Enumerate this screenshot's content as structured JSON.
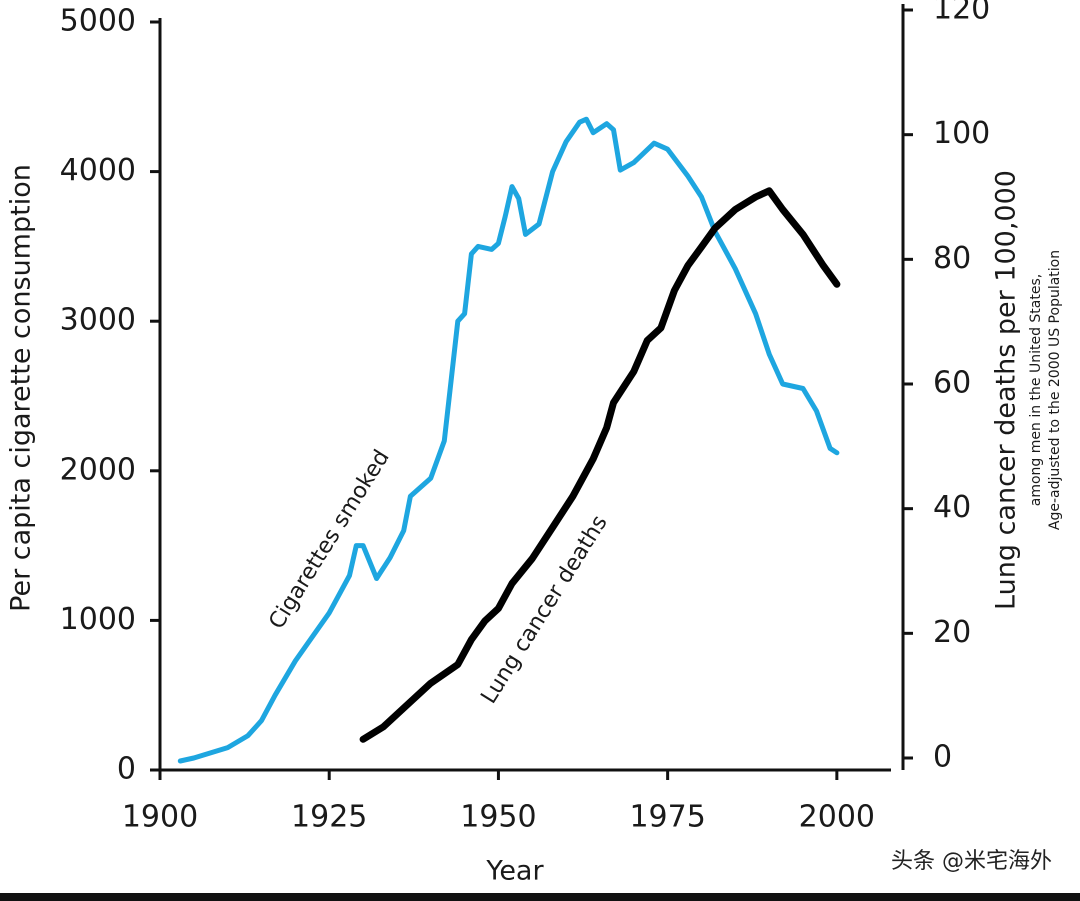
{
  "chart_data": {
    "type": "line",
    "xlabel": "Year",
    "ylabel": "Per capita cigarette consumption",
    "y2label": "Lung cancer deaths per 100,000",
    "y2note": [
      "among men in the United States,",
      "Age-adjusted to the 2000 US Population"
    ],
    "watermark": "头条 @米宅海外",
    "xlim": [
      1900,
      2008
    ],
    "xticks": [
      1900,
      1925,
      1950,
      1975,
      2000
    ],
    "ylim": [
      0,
      5000
    ],
    "yticks": [
      0,
      1000,
      2000,
      3000,
      4000,
      5000
    ],
    "y2lim": [
      0,
      120
    ],
    "y2ticks": [
      0,
      20,
      40,
      60,
      80,
      100,
      120
    ],
    "series": [
      {
        "name": "Cigarettes smoked",
        "color": "#1ea6e0",
        "x": [
          1903,
          1905,
          1910,
          1913,
          1915,
          1917,
          1920,
          1925,
          1928,
          1929,
          1930,
          1932,
          1934,
          1936,
          1937,
          1940,
          1942,
          1944,
          1945,
          1946,
          1947,
          1949,
          1950,
          1951,
          1952,
          1953,
          1954,
          1956,
          1958,
          1960,
          1962,
          1963,
          1964,
          1966,
          1967,
          1968,
          1970,
          1973,
          1975,
          1978,
          1980,
          1982,
          1985,
          1988,
          1990,
          1992,
          1995,
          1997,
          1999,
          2000
        ],
        "values": [
          60,
          80,
          150,
          230,
          330,
          500,
          730,
          1050,
          1300,
          1500,
          1500,
          1280,
          1420,
          1600,
          1830,
          1950,
          2200,
          3000,
          3050,
          3450,
          3500,
          3480,
          3520,
          3700,
          3900,
          3820,
          3580,
          3650,
          4000,
          4200,
          4330,
          4350,
          4260,
          4320,
          4280,
          4010,
          4060,
          4190,
          4150,
          3970,
          3830,
          3600,
          3350,
          3050,
          2780,
          2580,
          2550,
          2400,
          2150,
          2120
        ]
      },
      {
        "name": "Lung cancer deaths",
        "color": "#000000",
        "axis": "y2",
        "x": [
          1930,
          1933,
          1936,
          1940,
          1944,
          1946,
          1948,
          1950,
          1952,
          1955,
          1958,
          1961,
          1964,
          1966,
          1967,
          1970,
          1972,
          1974,
          1976,
          1978,
          1980,
          1982,
          1985,
          1988,
          1990,
          1992,
          1995,
          1998,
          2000
        ],
        "values": [
          3,
          5,
          8,
          12,
          15,
          19,
          22,
          24,
          28,
          32,
          37,
          42,
          48,
          53,
          57,
          62,
          67,
          69,
          75,
          79,
          82,
          85,
          88,
          90,
          91,
          88,
          84,
          79,
          76
        ]
      }
    ]
  }
}
